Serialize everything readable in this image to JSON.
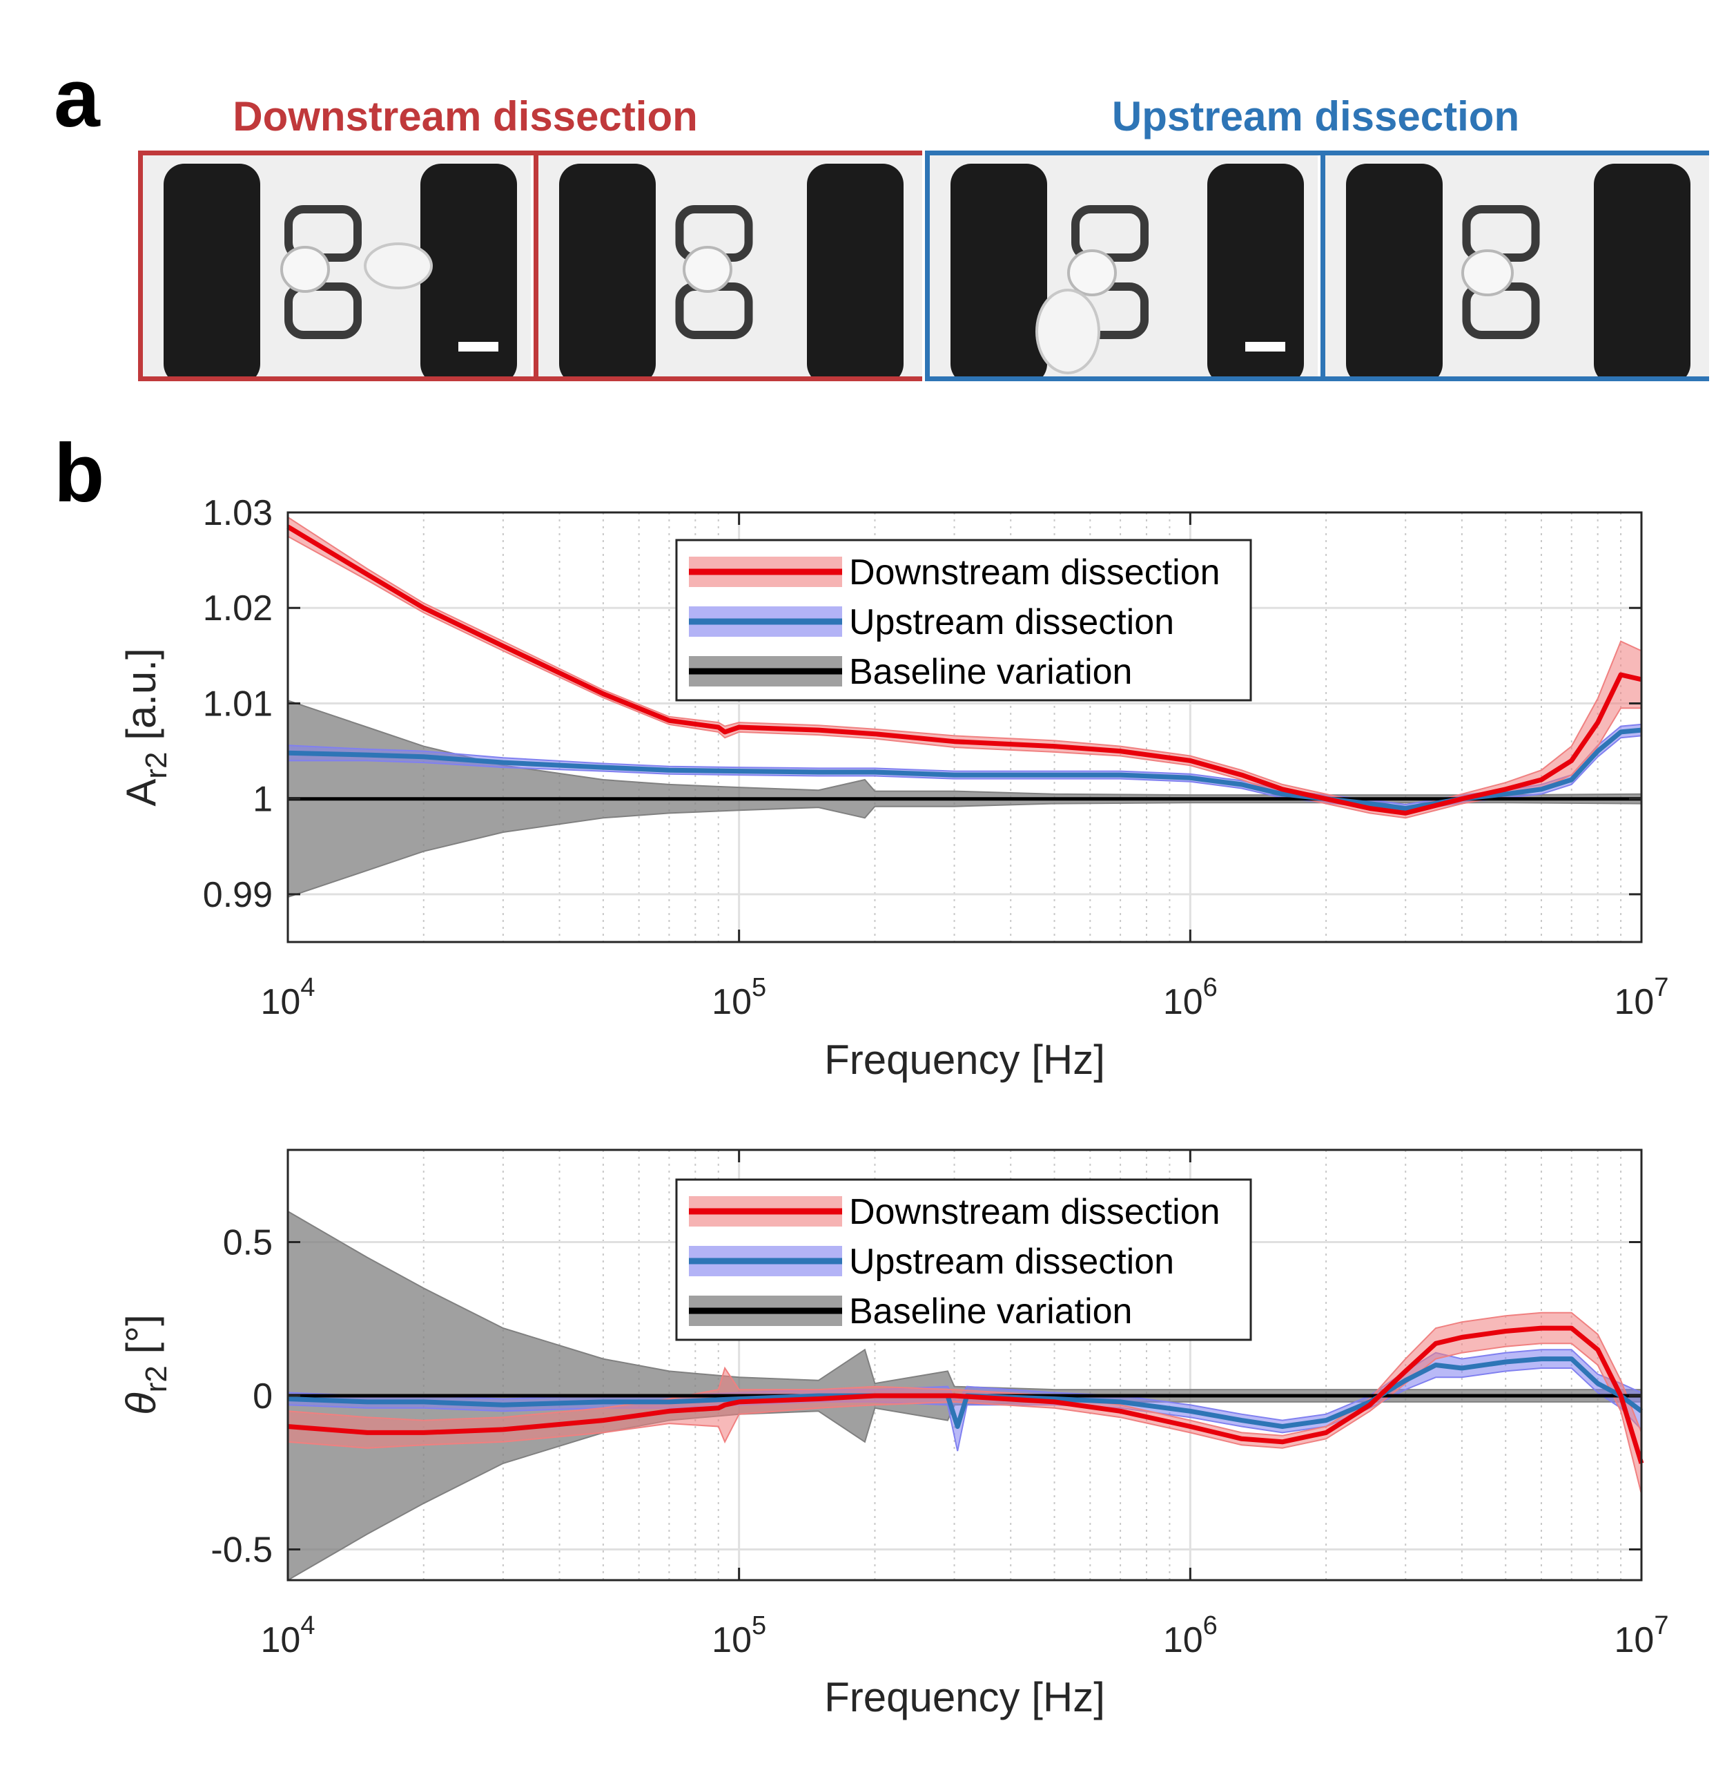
{
  "panel_a": {
    "letter": "a",
    "groups": [
      {
        "title": "Downstream dissection",
        "color": "#c0393b",
        "frames": 2
      },
      {
        "title": "Upstream dissection",
        "color": "#2e75b6",
        "frames": 2
      }
    ]
  },
  "panel_b": {
    "letter": "b"
  },
  "colors": {
    "downstream_line": "#e8000b",
    "downstream_band": "#f08080",
    "upstream_line": "#2e75b6",
    "upstream_band": "#8080f0",
    "baseline_line": "#000000",
    "baseline_band": "#808080"
  },
  "chart_data": [
    {
      "type": "line",
      "xscale": "log",
      "xlim": [
        10000,
        10000000
      ],
      "ylim": [
        0.985,
        1.03
      ],
      "xlabel": "Frequency [Hz]",
      "ylabel_main": "A",
      "ylabel_sub": "r2",
      "ylabel_tail": " [a.u.]",
      "xticks": [
        10000,
        100000,
        1000000,
        10000000
      ],
      "xtick_labels": [
        {
          "base": "10",
          "exp": "4"
        },
        {
          "base": "10",
          "exp": "5"
        },
        {
          "base": "10",
          "exp": "6"
        },
        {
          "base": "10",
          "exp": "7"
        }
      ],
      "yticks": [
        0.99,
        1,
        1.01,
        1.02,
        1.03
      ],
      "ytick_labels": [
        "0.99",
        "1",
        "1.01",
        "1.02",
        "1.03"
      ],
      "grid": true,
      "legend": "top-center",
      "series": [
        {
          "name": "Downstream dissection",
          "x": [
            10000,
            15000,
            20000,
            30000,
            50000,
            70000,
            90000,
            93000,
            100000,
            150000,
            200000,
            300000,
            500000,
            700000,
            1000000,
            1300000,
            1600000,
            2000000,
            2500000,
            3000000,
            4000000,
            5000000,
            6000000,
            7000000,
            8000000,
            9000000,
            10000000
          ],
          "y": [
            1.0285,
            1.0235,
            1.02,
            1.016,
            1.011,
            1.0082,
            1.0075,
            1.007,
            1.0075,
            1.0072,
            1.0068,
            1.006,
            1.0055,
            1.005,
            1.004,
            1.0025,
            1.001,
            1.0,
            0.999,
            0.9985,
            1.0,
            1.001,
            1.002,
            1.004,
            1.008,
            1.013,
            1.0125
          ],
          "band": [
            0.001,
            0.0006,
            0.0005,
            0.0005,
            0.0004,
            0.0004,
            0.0005,
            0.0006,
            0.0005,
            0.0005,
            0.0005,
            0.0006,
            0.0006,
            0.0005,
            0.0005,
            0.0005,
            0.0005,
            0.0005,
            0.0005,
            0.0005,
            0.0005,
            0.0007,
            0.001,
            0.0015,
            0.0025,
            0.0035,
            0.003
          ]
        },
        {
          "name": "Upstream dissection",
          "x": [
            10000,
            15000,
            20000,
            30000,
            50000,
            70000,
            100000,
            150000,
            200000,
            300000,
            500000,
            700000,
            1000000,
            1300000,
            1600000,
            2000000,
            2500000,
            3000000,
            4000000,
            5000000,
            6000000,
            7000000,
            8000000,
            9000000,
            10000000
          ],
          "y": [
            1.0048,
            1.0046,
            1.0044,
            1.0038,
            1.0033,
            1.003,
            1.0029,
            1.0028,
            1.0028,
            1.0025,
            1.0025,
            1.0025,
            1.0022,
            1.0015,
            1.0005,
            1.0,
            0.9995,
            0.999,
            1.0,
            1.0005,
            1.001,
            1.002,
            1.005,
            1.007,
            1.0072
          ],
          "band": [
            0.0008,
            0.0006,
            0.0006,
            0.0005,
            0.0004,
            0.0004,
            0.0004,
            0.0004,
            0.0004,
            0.0004,
            0.0004,
            0.0004,
            0.0004,
            0.0004,
            0.0004,
            0.0004,
            0.0004,
            0.0004,
            0.0004,
            0.0004,
            0.0005,
            0.0005,
            0.0006,
            0.0006,
            0.0006
          ]
        },
        {
          "name": "Baseline variation",
          "x": [
            10000,
            15000,
            20000,
            30000,
            50000,
            70000,
            100000,
            150000,
            190000,
            200000,
            300000,
            500000,
            1000000,
            2000000,
            5000000,
            10000000
          ],
          "y": [
            1.0,
            1.0,
            1.0,
            1.0,
            1.0,
            1.0,
            1.0,
            1.0,
            1.0,
            1.0,
            1.0,
            1.0,
            1.0,
            1.0,
            1.0,
            1.0
          ],
          "band": [
            0.0103,
            0.0075,
            0.0055,
            0.0035,
            0.002,
            0.0015,
            0.0012,
            0.0009,
            0.002,
            0.0008,
            0.0008,
            0.0005,
            0.0004,
            0.0004,
            0.0004,
            0.0005
          ]
        }
      ]
    },
    {
      "type": "line",
      "xscale": "log",
      "xlim": [
        10000,
        10000000
      ],
      "ylim": [
        -0.6,
        0.8
      ],
      "xlabel": "Frequency [Hz]",
      "ylabel_main": "θ",
      "ylabel_sub": "r2",
      "ylabel_tail": " [°]",
      "xticks": [
        10000,
        100000,
        1000000,
        10000000
      ],
      "xtick_labels": [
        {
          "base": "10",
          "exp": "4"
        },
        {
          "base": "10",
          "exp": "5"
        },
        {
          "base": "10",
          "exp": "6"
        },
        {
          "base": "10",
          "exp": "7"
        }
      ],
      "yticks": [
        -0.5,
        0,
        0.5
      ],
      "ytick_labels": [
        "-0.5",
        "0",
        "0.5"
      ],
      "grid": true,
      "legend": "top-center",
      "series": [
        {
          "name": "Downstream dissection",
          "x": [
            10000,
            15000,
            20000,
            30000,
            50000,
            70000,
            90000,
            93000,
            100000,
            150000,
            200000,
            300000,
            500000,
            700000,
            1000000,
            1300000,
            1600000,
            2000000,
            2500000,
            3000000,
            3500000,
            4000000,
            5000000,
            6000000,
            7000000,
            8000000,
            9000000,
            10000000
          ],
          "y": [
            -0.1,
            -0.12,
            -0.12,
            -0.11,
            -0.08,
            -0.05,
            -0.04,
            -0.03,
            -0.02,
            -0.01,
            0.0,
            0.0,
            -0.02,
            -0.05,
            -0.1,
            -0.14,
            -0.15,
            -0.12,
            -0.03,
            0.08,
            0.17,
            0.19,
            0.21,
            0.22,
            0.22,
            0.15,
            0.0,
            -0.22
          ],
          "band": [
            0.05,
            0.05,
            0.04,
            0.04,
            0.04,
            0.04,
            0.06,
            0.12,
            0.04,
            0.03,
            0.03,
            0.02,
            0.02,
            0.02,
            0.02,
            0.02,
            0.02,
            0.02,
            0.02,
            0.04,
            0.05,
            0.05,
            0.05,
            0.05,
            0.05,
            0.05,
            0.05,
            0.1
          ]
        },
        {
          "name": "Upstream dissection",
          "x": [
            10000,
            15000,
            20000,
            30000,
            50000,
            70000,
            100000,
            150000,
            200000,
            290000,
            305000,
            320000,
            500000,
            700000,
            1000000,
            1300000,
            1600000,
            2000000,
            2500000,
            3000000,
            3500000,
            4000000,
            5000000,
            6000000,
            7000000,
            8000000,
            9000000,
            10000000
          ],
          "y": [
            -0.01,
            -0.02,
            -0.02,
            -0.03,
            -0.02,
            -0.02,
            -0.01,
            0.0,
            0.0,
            0.0,
            -0.1,
            0.0,
            -0.01,
            -0.02,
            -0.05,
            -0.08,
            -0.1,
            -0.08,
            -0.02,
            0.05,
            0.1,
            0.09,
            0.11,
            0.12,
            0.12,
            0.04,
            0.0,
            -0.05
          ],
          "band": [
            0.02,
            0.02,
            0.02,
            0.02,
            0.02,
            0.02,
            0.02,
            0.02,
            0.02,
            0.03,
            0.08,
            0.03,
            0.02,
            0.02,
            0.02,
            0.02,
            0.02,
            0.02,
            0.02,
            0.03,
            0.04,
            0.03,
            0.03,
            0.03,
            0.03,
            0.03,
            0.04,
            0.06
          ]
        },
        {
          "name": "Baseline variation",
          "x": [
            10000,
            15000,
            20000,
            30000,
            50000,
            70000,
            100000,
            150000,
            190000,
            200000,
            290000,
            300000,
            500000,
            1000000,
            2000000,
            5000000,
            10000000
          ],
          "y": [
            0.0,
            0.0,
            0.0,
            0.0,
            0.0,
            0.0,
            0.0,
            0.0,
            0.0,
            0.0,
            0.0,
            0.0,
            0.0,
            0.0,
            0.0,
            0.0,
            0.0
          ],
          "band": [
            0.6,
            0.45,
            0.35,
            0.22,
            0.12,
            0.08,
            0.06,
            0.05,
            0.15,
            0.04,
            0.08,
            0.03,
            0.02,
            0.02,
            0.02,
            0.02,
            0.02
          ]
        }
      ]
    }
  ]
}
